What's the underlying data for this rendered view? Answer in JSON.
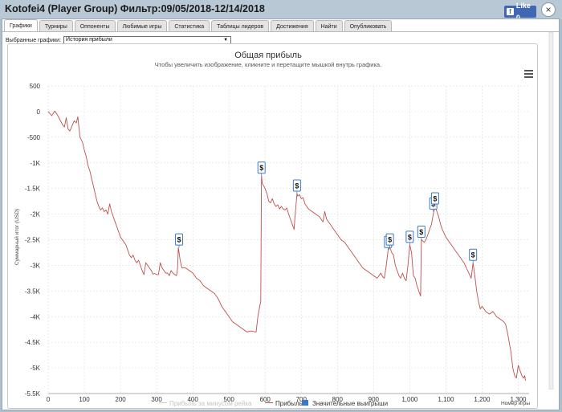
{
  "window": {
    "title": "Kotofei4 (Player Group) Фильтр:09/05/2018-12/14/2018",
    "close_glyph": "×"
  },
  "facebook": {
    "like_label": "Like 0",
    "icon": "f"
  },
  "tabs": [
    {
      "label": "Графики",
      "active": true
    },
    {
      "label": "Турниры",
      "active": false
    },
    {
      "label": "Оппоненты",
      "active": false
    },
    {
      "label": "Любимые игры",
      "active": false
    },
    {
      "label": "Статистика",
      "active": false
    },
    {
      "label": "Таблицы лидеров",
      "active": false
    },
    {
      "label": "Достижения",
      "active": false
    },
    {
      "label": "Найти",
      "active": false
    },
    {
      "label": "Опубликовать",
      "active": false
    }
  ],
  "chart_selector": {
    "label": "Выбранные графики:",
    "value": "История прибыли",
    "arrow": "▼"
  },
  "chart_data": {
    "type": "line",
    "title": "Общая прибыль",
    "subtitle": "Чтобы увеличить изображение, кликните и перетащите мышкой внутрь графика.",
    "xlabel": "Номер игры",
    "ylabel": "Суммарный итог (USD)",
    "xlim": [
      0,
      1330
    ],
    "ylim": [
      -5500,
      500
    ],
    "x_ticks": [
      0,
      100,
      200,
      300,
      400,
      500,
      600,
      700,
      800,
      900,
      1000,
      1100,
      1200,
      1300
    ],
    "x_tick_labels": [
      "0",
      "100",
      "200",
      "300",
      "400",
      "500",
      "600",
      "700",
      "800",
      "900",
      "1,000",
      "1,100",
      "1,200",
      "1,300"
    ],
    "y_ticks": [
      500,
      0,
      -500,
      -1000,
      -1500,
      -2000,
      -2500,
      -3000,
      -3500,
      -4000,
      -4500,
      -5000,
      -5500
    ],
    "y_tick_labels": [
      "500",
      "0",
      "-500",
      "-1K",
      "-1.5K",
      "-2K",
      "-2.5K",
      "-3K",
      "-3.5K",
      "-4K",
      "-4.5K",
      "-5K",
      "-5.5K"
    ],
    "grid": true,
    "legend_position": "bottom",
    "legend": [
      {
        "name": "Прибыль за минусом рейка",
        "color": "#d0d0d0",
        "hidden": true
      },
      {
        "name": "Прибыль",
        "color": "#c0504d",
        "hidden": false
      },
      {
        "name": "Значительные выигрыши",
        "color": "#3a78c8",
        "hidden": false
      }
    ],
    "series": [
      {
        "name": "Прибыль",
        "color": "#c0504d",
        "points": [
          [
            0,
            0
          ],
          [
            10,
            -80
          ],
          [
            18,
            10
          ],
          [
            25,
            -60
          ],
          [
            32,
            -150
          ],
          [
            40,
            -260
          ],
          [
            45,
            -300
          ],
          [
            50,
            -120
          ],
          [
            55,
            -340
          ],
          [
            60,
            -380
          ],
          [
            66,
            -280
          ],
          [
            72,
            -180
          ],
          [
            78,
            -220
          ],
          [
            82,
            -100
          ],
          [
            88,
            -500
          ],
          [
            95,
            -600
          ],
          [
            100,
            -750
          ],
          [
            105,
            -870
          ],
          [
            110,
            -1050
          ],
          [
            115,
            -1150
          ],
          [
            120,
            -1300
          ],
          [
            125,
            -1450
          ],
          [
            130,
            -1600
          ],
          [
            135,
            -1750
          ],
          [
            140,
            -1850
          ],
          [
            145,
            -1920
          ],
          [
            150,
            -1880
          ],
          [
            155,
            -1950
          ],
          [
            160,
            -1920
          ],
          [
            165,
            -2000
          ],
          [
            170,
            -1800
          ],
          [
            175,
            -1950
          ],
          [
            180,
            -2050
          ],
          [
            185,
            -2150
          ],
          [
            190,
            -2250
          ],
          [
            195,
            -2350
          ],
          [
            200,
            -2450
          ],
          [
            205,
            -2500
          ],
          [
            210,
            -2550
          ],
          [
            215,
            -2600
          ],
          [
            220,
            -2700
          ],
          [
            225,
            -2800
          ],
          [
            230,
            -2850
          ],
          [
            235,
            -2800
          ],
          [
            240,
            -2900
          ],
          [
            245,
            -2950
          ],
          [
            250,
            -2900
          ],
          [
            255,
            -3000
          ],
          [
            260,
            -3100
          ],
          [
            265,
            -3180
          ],
          [
            270,
            -2950
          ],
          [
            275,
            -3000
          ],
          [
            280,
            -3050
          ],
          [
            285,
            -3100
          ],
          [
            290,
            -3170
          ],
          [
            295,
            -3160
          ],
          [
            300,
            -3180
          ],
          [
            305,
            -3180
          ],
          [
            310,
            -2950
          ],
          [
            315,
            -3050
          ],
          [
            320,
            -3100
          ],
          [
            325,
            -3150
          ],
          [
            330,
            -3150
          ],
          [
            335,
            -3200
          ],
          [
            340,
            -3100
          ],
          [
            345,
            -3150
          ],
          [
            350,
            -3180
          ],
          [
            355,
            -3200
          ],
          [
            358,
            -3050
          ],
          [
            360,
            -2650
          ],
          [
            365,
            -2900
          ],
          [
            370,
            -3050
          ],
          [
            380,
            -3050
          ],
          [
            390,
            -3100
          ],
          [
            400,
            -3150
          ],
          [
            410,
            -3250
          ],
          [
            420,
            -3300
          ],
          [
            430,
            -3400
          ],
          [
            440,
            -3450
          ],
          [
            450,
            -3500
          ],
          [
            460,
            -3550
          ],
          [
            470,
            -3650
          ],
          [
            480,
            -3800
          ],
          [
            490,
            -3900
          ],
          [
            500,
            -4000
          ],
          [
            510,
            -4100
          ],
          [
            520,
            -4150
          ],
          [
            530,
            -4200
          ],
          [
            540,
            -4250
          ],
          [
            550,
            -4300
          ],
          [
            560,
            -4280
          ],
          [
            575,
            -4300
          ],
          [
            580,
            -4000
          ],
          [
            585,
            -3800
          ],
          [
            588,
            -3700
          ],
          [
            590,
            -1250
          ],
          [
            592,
            -1400
          ],
          [
            600,
            -1500
          ],
          [
            605,
            -1600
          ],
          [
            610,
            -1750
          ],
          [
            615,
            -1780
          ],
          [
            620,
            -1700
          ],
          [
            625,
            -1800
          ],
          [
            630,
            -1850
          ],
          [
            635,
            -1820
          ],
          [
            640,
            -1900
          ],
          [
            645,
            -1850
          ],
          [
            650,
            -1900
          ],
          [
            655,
            -1920
          ],
          [
            660,
            -1880
          ],
          [
            665,
            -2000
          ],
          [
            670,
            -2100
          ],
          [
            675,
            -2200
          ],
          [
            680,
            -2300
          ],
          [
            682,
            -2100
          ],
          [
            688,
            -1600
          ],
          [
            690,
            -1650
          ],
          [
            695,
            -1620
          ],
          [
            700,
            -1700
          ],
          [
            705,
            -1680
          ],
          [
            710,
            -1800
          ],
          [
            720,
            -1900
          ],
          [
            730,
            -1950
          ],
          [
            740,
            -2000
          ],
          [
            750,
            -2050
          ],
          [
            760,
            -2150
          ],
          [
            765,
            -1950
          ],
          [
            770,
            -2100
          ],
          [
            780,
            -2200
          ],
          [
            790,
            -2300
          ],
          [
            800,
            -2400
          ],
          [
            810,
            -2500
          ],
          [
            820,
            -2550
          ],
          [
            830,
            -2650
          ],
          [
            840,
            -2750
          ],
          [
            850,
            -2850
          ],
          [
            860,
            -2950
          ],
          [
            870,
            -3050
          ],
          [
            880,
            -3100
          ],
          [
            890,
            -3150
          ],
          [
            900,
            -3200
          ],
          [
            910,
            -3250
          ],
          [
            915,
            -3200
          ],
          [
            920,
            -3150
          ],
          [
            925,
            -3220
          ],
          [
            930,
            -3250
          ],
          [
            935,
            -3000
          ],
          [
            940,
            -2700
          ],
          [
            945,
            -2650
          ],
          [
            950,
            -2750
          ],
          [
            955,
            -2800
          ],
          [
            960,
            -3000
          ],
          [
            965,
            -3100
          ],
          [
            970,
            -3200
          ],
          [
            975,
            -3250
          ],
          [
            980,
            -3150
          ],
          [
            985,
            -3250
          ],
          [
            990,
            -3300
          ],
          [
            995,
            -3000
          ],
          [
            1000,
            -2600
          ],
          [
            1005,
            -2750
          ],
          [
            1010,
            -3200
          ],
          [
            1015,
            -3250
          ],
          [
            1020,
            -3400
          ],
          [
            1025,
            -3500
          ],
          [
            1030,
            -3600
          ],
          [
            1032,
            -2500
          ],
          [
            1040,
            -2550
          ],
          [
            1045,
            -2500
          ],
          [
            1050,
            -2400
          ],
          [
            1055,
            -2300
          ],
          [
            1060,
            -2200
          ],
          [
            1065,
            -2000
          ],
          [
            1070,
            -1850
          ],
          [
            1075,
            -1950
          ],
          [
            1080,
            -2050
          ],
          [
            1085,
            -2200
          ],
          [
            1090,
            -2300
          ],
          [
            1100,
            -2450
          ],
          [
            1110,
            -2550
          ],
          [
            1120,
            -2650
          ],
          [
            1130,
            -2750
          ],
          [
            1140,
            -2850
          ],
          [
            1150,
            -2950
          ],
          [
            1160,
            -3100
          ],
          [
            1170,
            -3250
          ],
          [
            1175,
            -2950
          ],
          [
            1180,
            -3200
          ],
          [
            1185,
            -3500
          ],
          [
            1190,
            -3700
          ],
          [
            1195,
            -3850
          ],
          [
            1200,
            -3800
          ],
          [
            1210,
            -3900
          ],
          [
            1220,
            -3950
          ],
          [
            1230,
            -3900
          ],
          [
            1240,
            -4000
          ],
          [
            1250,
            -4050
          ],
          [
            1260,
            -4100
          ],
          [
            1265,
            -4150
          ],
          [
            1270,
            -4300
          ],
          [
            1275,
            -4500
          ],
          [
            1280,
            -4700
          ],
          [
            1285,
            -5000
          ],
          [
            1290,
            -5150
          ],
          [
            1295,
            -5200
          ],
          [
            1300,
            -4950
          ],
          [
            1305,
            -5050
          ],
          [
            1310,
            -5150
          ],
          [
            1315,
            -5200
          ],
          [
            1318,
            -5150
          ],
          [
            1320,
            -5250
          ]
        ]
      }
    ],
    "significant_wins": [
      {
        "x": 362,
        "y": -2650,
        "label": "$"
      },
      {
        "x": 590,
        "y": -1250,
        "label": "$"
      },
      {
        "x": 688,
        "y": -1600,
        "label": "$"
      },
      {
        "x": 940,
        "y": -2700,
        "label": "$"
      },
      {
        "x": 945,
        "y": -2650,
        "label": "$"
      },
      {
        "x": 1000,
        "y": -2600,
        "label": "$"
      },
      {
        "x": 1032,
        "y": -2500,
        "label": "$"
      },
      {
        "x": 1065,
        "y": -1950,
        "label": "$"
      },
      {
        "x": 1070,
        "y": -1850,
        "label": "$"
      },
      {
        "x": 1175,
        "y": -2950,
        "label": "$"
      }
    ]
  }
}
